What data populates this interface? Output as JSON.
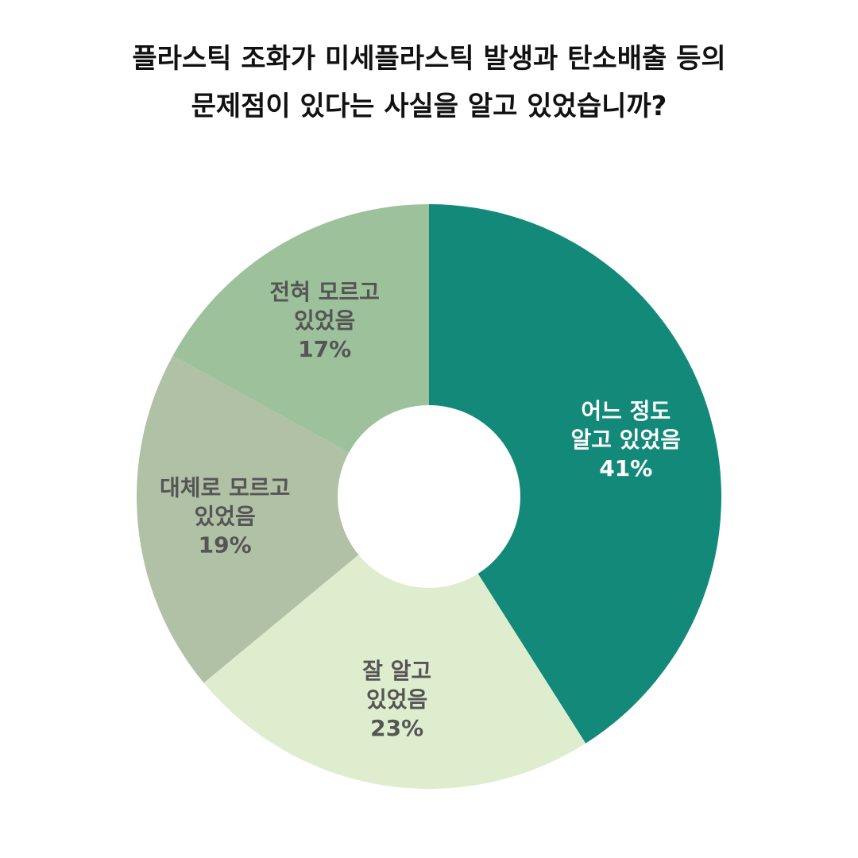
{
  "chart_data": {
    "type": "pie",
    "donut": true,
    "title_lines": [
      "플라스틱 조화가 미세플라스틱 발생과 탄소배출 등의",
      "문제점이 있다는 사실을 알고 있었습니까?"
    ],
    "slices": [
      {
        "label_lines": [
          "어느 정도",
          "알고 있었음"
        ],
        "value": 41,
        "value_label": "41%",
        "color": "#13897a",
        "text_color": "#ffffff"
      },
      {
        "label_lines": [
          "잘 알고",
          "있었음"
        ],
        "value": 23,
        "value_label": "23%",
        "color": "#dfedcf",
        "text_color": "#555555"
      },
      {
        "label_lines": [
          "대체로 모르고",
          "있었음"
        ],
        "value": 19,
        "value_label": "19%",
        "color": "#b0c1a6",
        "text_color": "#555555"
      },
      {
        "label_lines": [
          "전혀 모르고",
          "있었음"
        ],
        "value": 17,
        "value_label": "17%",
        "color": "#9dc19b",
        "text_color": "#555555"
      }
    ]
  }
}
